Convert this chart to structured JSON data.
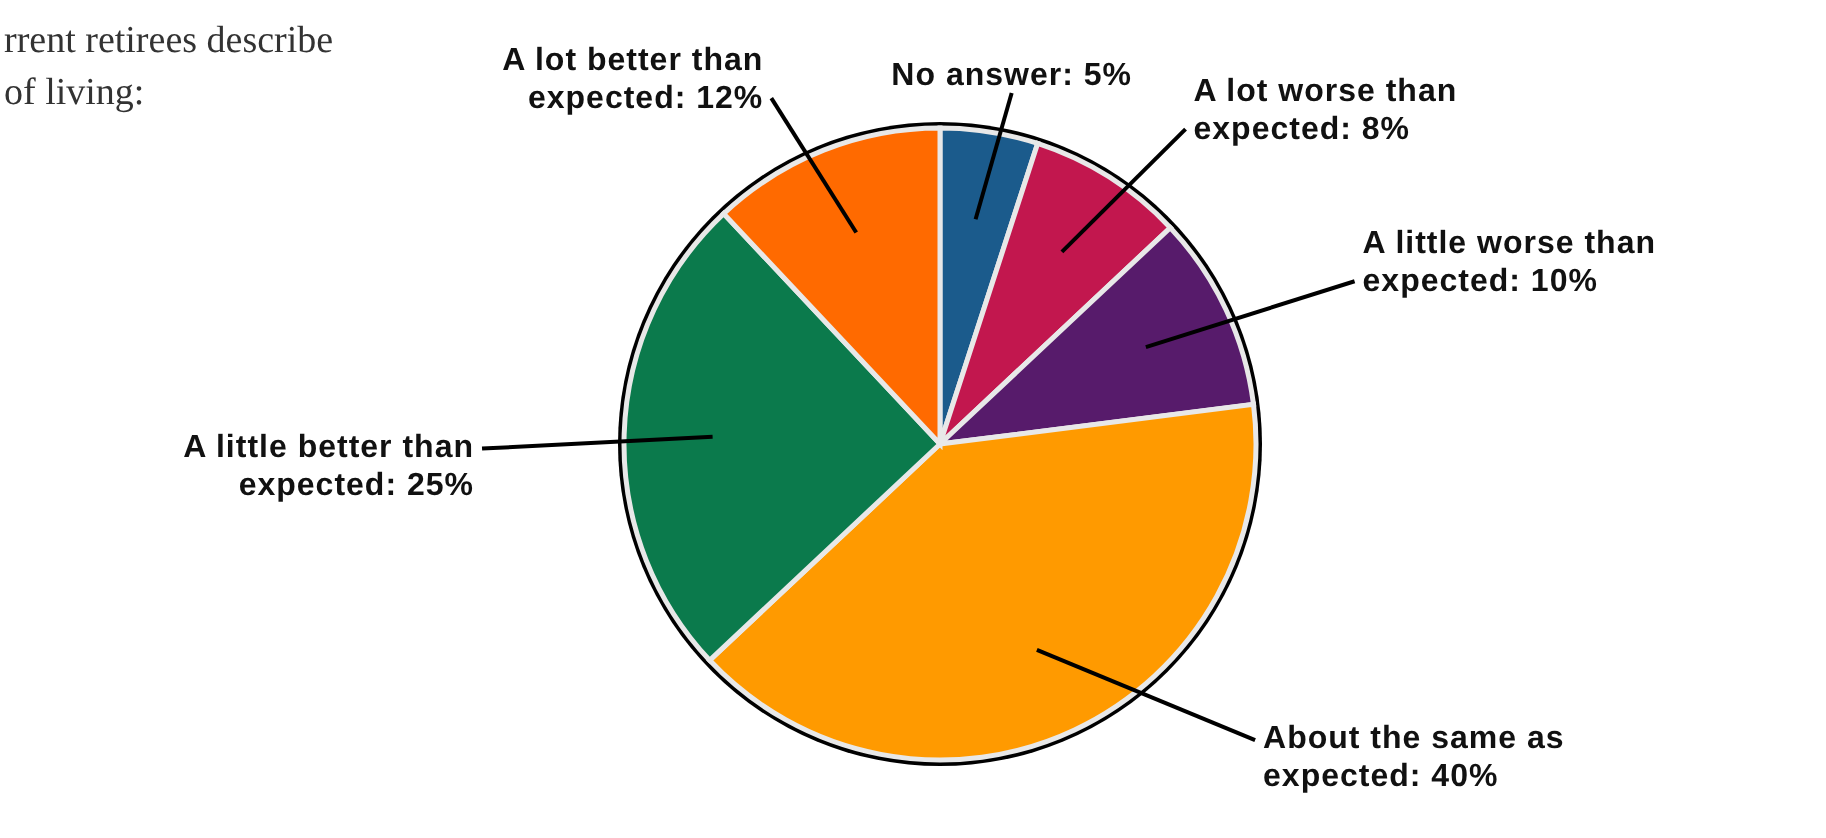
{
  "chart_data": {
    "type": "pie",
    "title": "rrent retirees describe\nof living:",
    "categories": [
      "No answer",
      "A lot worse than expected",
      "A little worse than expected",
      "About the same as expected",
      "A little better than expected",
      "A lot better than expected"
    ],
    "values": [
      5,
      8,
      10,
      40,
      25,
      12
    ],
    "colors": [
      "#1b5b8c",
      "#c2174e",
      "#571b6b",
      "#ff9a00",
      "#0b7a4c",
      "#ff6a00"
    ],
    "value_labels": [
      "5%",
      "8%",
      "10%",
      "40%",
      "25%",
      "12%"
    ]
  }
}
